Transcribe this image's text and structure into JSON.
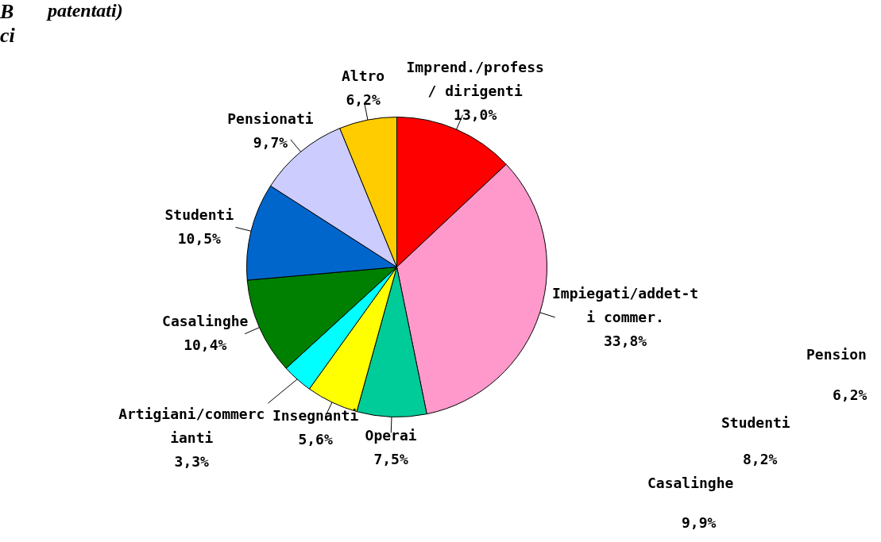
{
  "chart_data": [
    {
      "type": "pie",
      "title": "patentati)",
      "categories": [
        "Imprend./profess / dirigenti",
        "Impiegati/addet-ti commer.",
        "Operai",
        "Insegnanti",
        "Artigiani/commercianti",
        "Casalinghe",
        "Studenti",
        "Pensionati",
        "Altro"
      ],
      "values": [
        13.0,
        33.8,
        7.5,
        5.6,
        3.3,
        10.4,
        10.5,
        9.7,
        6.2
      ],
      "value_labels": [
        "13,0%",
        "33,8%",
        "7,5%",
        "5,6%",
        "3,3%",
        "10,4%",
        "10,5%",
        "9,7%",
        "6,2%"
      ],
      "colors": [
        "#ff0000",
        "#ff99cc",
        "#00cc99",
        "#ffff00",
        "#00ffff",
        "#008000",
        "#0066cc",
        "#ccccff",
        "#ffcc00"
      ]
    },
    {
      "type": "other",
      "annotations": [
        "B",
        "ci",
        "Pension",
        "6,2%",
        "Studenti",
        "8,2%",
        "Casalinghe",
        "9,9%"
      ]
    }
  ]
}
